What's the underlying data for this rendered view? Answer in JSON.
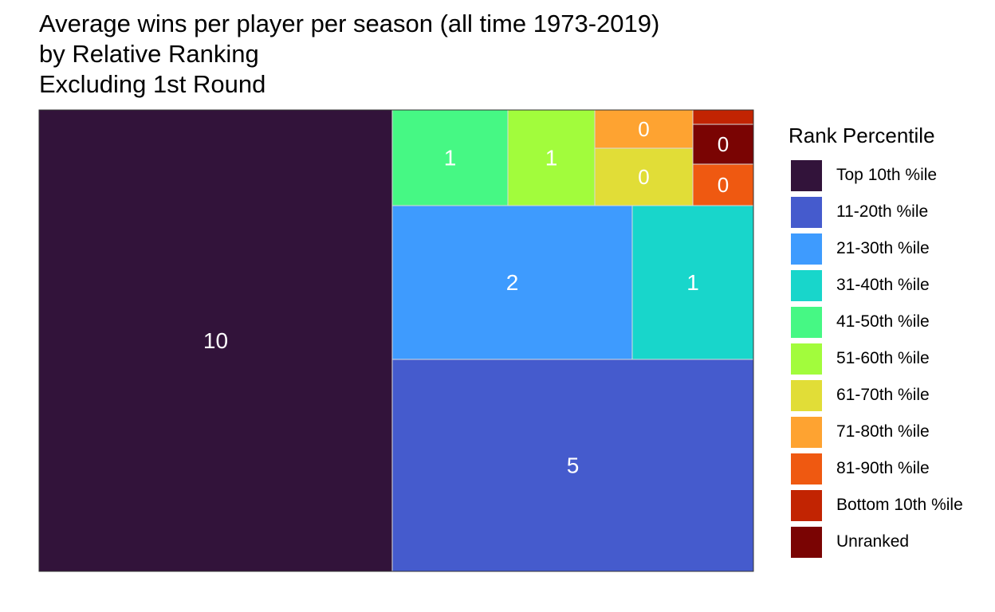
{
  "title_lines": [
    "Average wins per player per season (all time 1973-2019)",
    "by Relative Ranking",
    "Excluding 1st Round"
  ],
  "legend": {
    "title": "Rank Percentile",
    "items": [
      {
        "label": "Top 10th %ile",
        "color": "#32133a"
      },
      {
        "label": "11-20th %ile",
        "color": "#455bcd"
      },
      {
        "label": "21-30th %ile",
        "color": "#3e9bfe"
      },
      {
        "label": "31-40th %ile",
        "color": "#18d6cb"
      },
      {
        "label": "41-50th %ile",
        "color": "#46f884"
      },
      {
        "label": "51-60th %ile",
        "color": "#a2fc3c"
      },
      {
        "label": "61-70th %ile",
        "color": "#e1dd37"
      },
      {
        "label": "71-80th %ile",
        "color": "#fea331"
      },
      {
        "label": "81-90th %ile",
        "color": "#ef5911"
      },
      {
        "label": "Bottom 10th %ile",
        "color": "#c22402"
      },
      {
        "label": "Unranked",
        "color": "#7a0403"
      }
    ]
  },
  "chart_data": {
    "type": "treemap",
    "series": [
      {
        "name": "Top 10th %ile",
        "value": 10,
        "label": "10"
      },
      {
        "name": "11-20th %ile",
        "value": 5,
        "label": "5"
      },
      {
        "name": "21-30th %ile",
        "value": 2,
        "label": "2"
      },
      {
        "name": "31-40th %ile",
        "value": 1,
        "label": "1"
      },
      {
        "name": "41-50th %ile",
        "value": 1,
        "label": "1"
      },
      {
        "name": "51-60th %ile",
        "value": 1,
        "label": "1"
      },
      {
        "name": "61-70th %ile",
        "value": 0,
        "label": "0"
      },
      {
        "name": "71-80th %ile",
        "value": 0,
        "label": "0"
      },
      {
        "name": "81-90th %ile",
        "value": 0,
        "label": "0"
      },
      {
        "name": "Bottom 10th %ile",
        "value": 0,
        "label": ""
      },
      {
        "name": "Unranked",
        "value": 0,
        "label": "0"
      }
    ]
  }
}
